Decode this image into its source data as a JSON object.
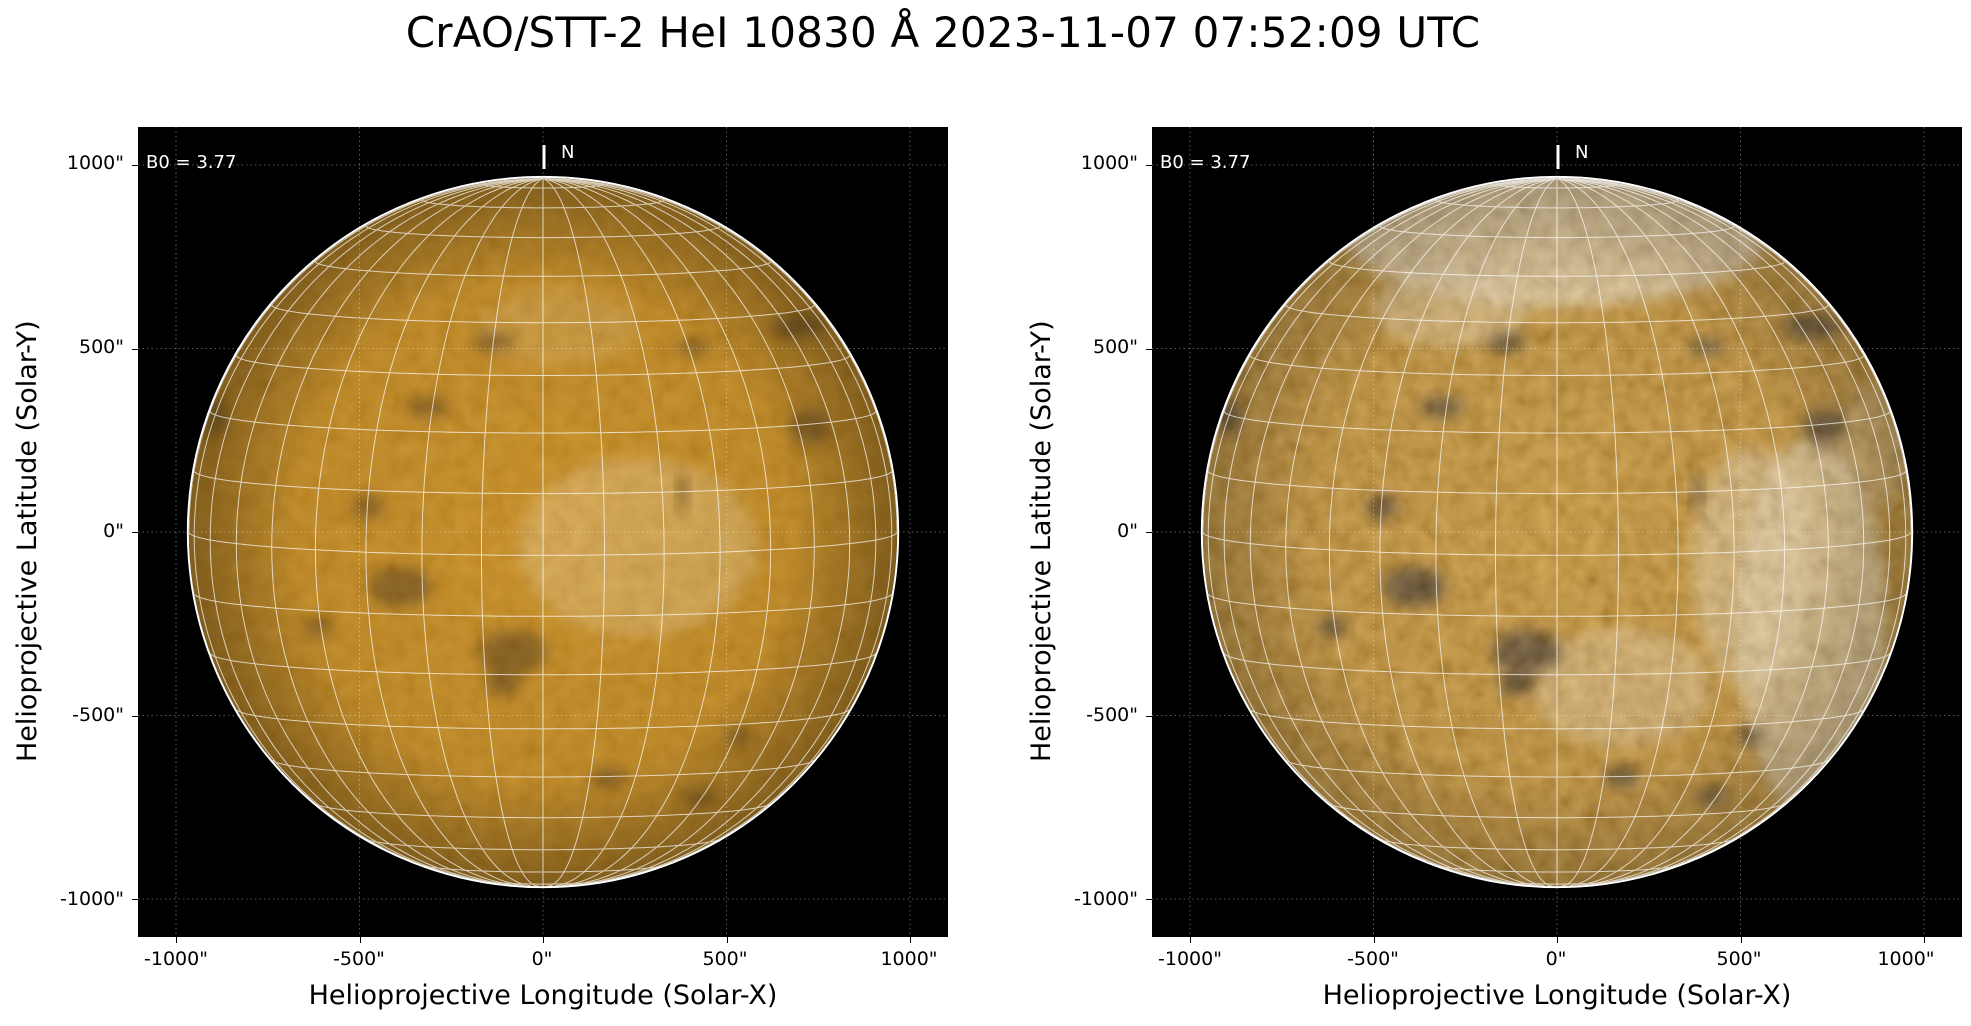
{
  "title": "CrAO/STT-2 HeI 10830 Å 2023-11-07 07:52:09 UTC",
  "panels": [
    {
      "id": "left",
      "annotation": "B0 = 3.77",
      "north_label": "N",
      "xlabel": "Helioprojective Longitude (Solar-X)",
      "ylabel": "Helioprojective Latitude (Solar-Y)",
      "xticks": [
        "-1000\"",
        "-500\"",
        "0\"",
        "500\"",
        "1000\""
      ],
      "yticks": [
        "1000\"",
        "500\"",
        "0\"",
        "-500\"",
        "-1000\""
      ],
      "contrast": "normal"
    },
    {
      "id": "right",
      "annotation": "B0 = 3.77",
      "north_label": "N",
      "xlabel": "Helioprojective Longitude (Solar-X)",
      "ylabel": "Helioprojective Latitude (Solar-Y)",
      "xticks": [
        "-1000\"",
        "-500\"",
        "0\"",
        "500\"",
        "1000\""
      ],
      "yticks": [
        "1000\"",
        "500\"",
        "0\"",
        "-500\"",
        "-1000\""
      ],
      "contrast": "enhanced"
    }
  ],
  "colors": {
    "disk": "#c8860d",
    "disk_bright": "#f2d39a",
    "disk_dark": "#3a2403",
    "grid": "#ffffff",
    "background": "#000000"
  }
}
